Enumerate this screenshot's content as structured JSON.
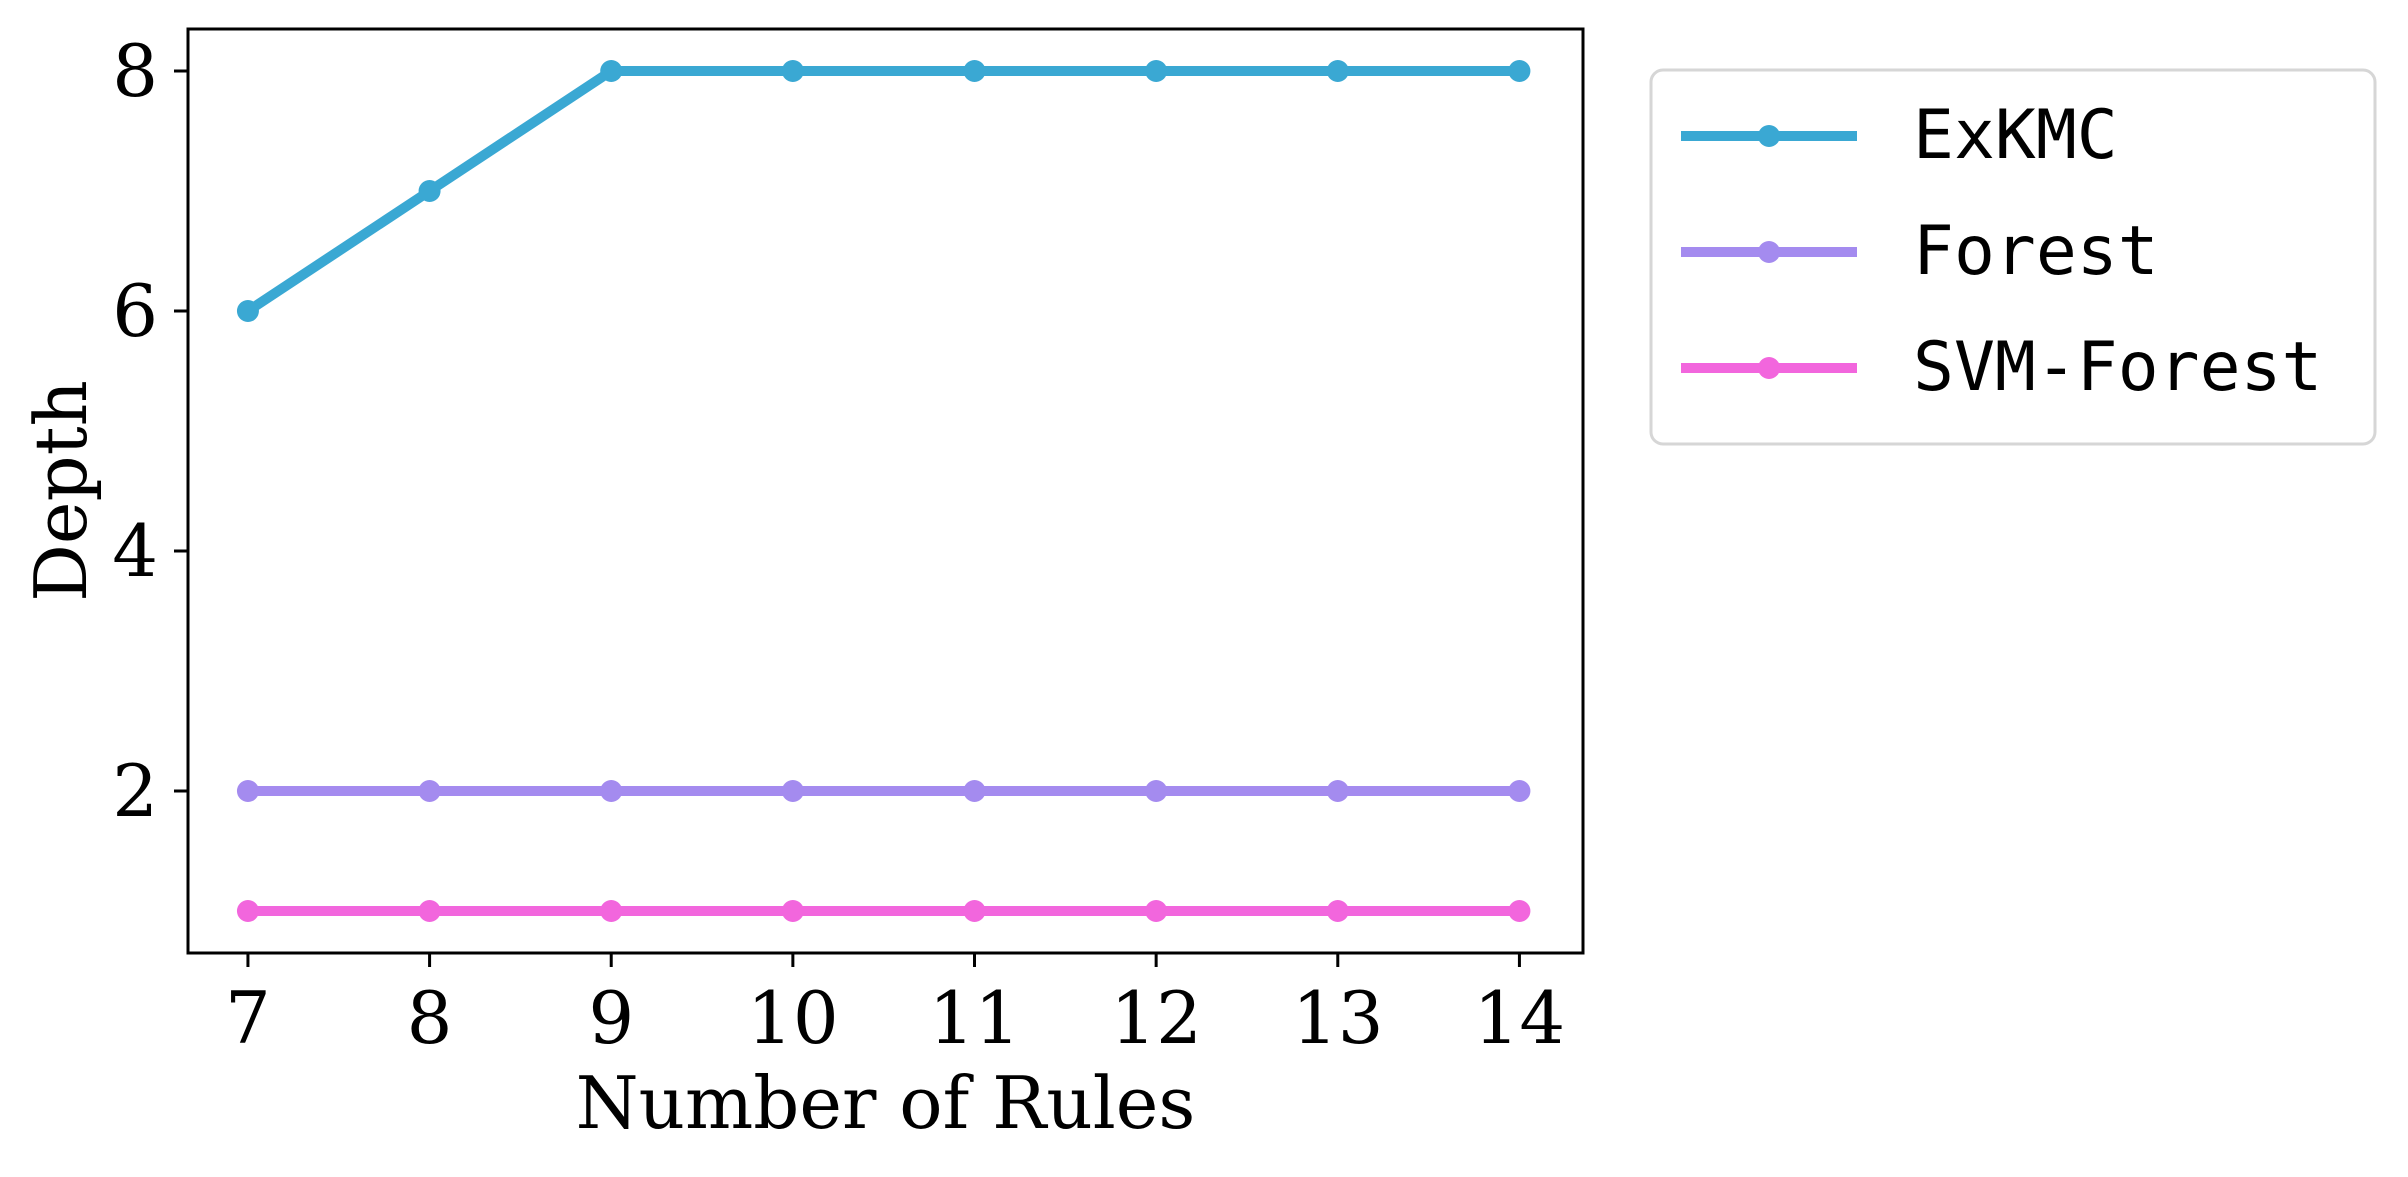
{
  "chart_data": {
    "type": "line",
    "title": "",
    "xlabel": "Number of Rules",
    "ylabel": "Depth",
    "x": [
      7,
      8,
      9,
      10,
      11,
      12,
      13,
      14
    ],
    "x_tick_labels": [
      "7",
      "8",
      "9",
      "10",
      "11",
      "12",
      "13",
      "14"
    ],
    "y_ticks": [
      2,
      4,
      6,
      8
    ],
    "y_tick_labels": [
      "2",
      "4",
      "6",
      "8"
    ],
    "xlim": [
      6.67,
      14.35
    ],
    "ylim": [
      0.65,
      8.35
    ],
    "grid": false,
    "legend_position": "outside-right-top",
    "series": [
      {
        "name": "ExKMC",
        "color": "#3aa8d3",
        "values": [
          6,
          7,
          8,
          8,
          8,
          8,
          8,
          8
        ]
      },
      {
        "name": "Forest",
        "color": "#a48bef",
        "values": [
          2,
          2,
          2,
          2,
          2,
          2,
          2,
          2
        ]
      },
      {
        "name": "SVM-Forest",
        "color": "#f266dd",
        "values": [
          1,
          1,
          1,
          1,
          1,
          1,
          1,
          1
        ]
      }
    ]
  }
}
